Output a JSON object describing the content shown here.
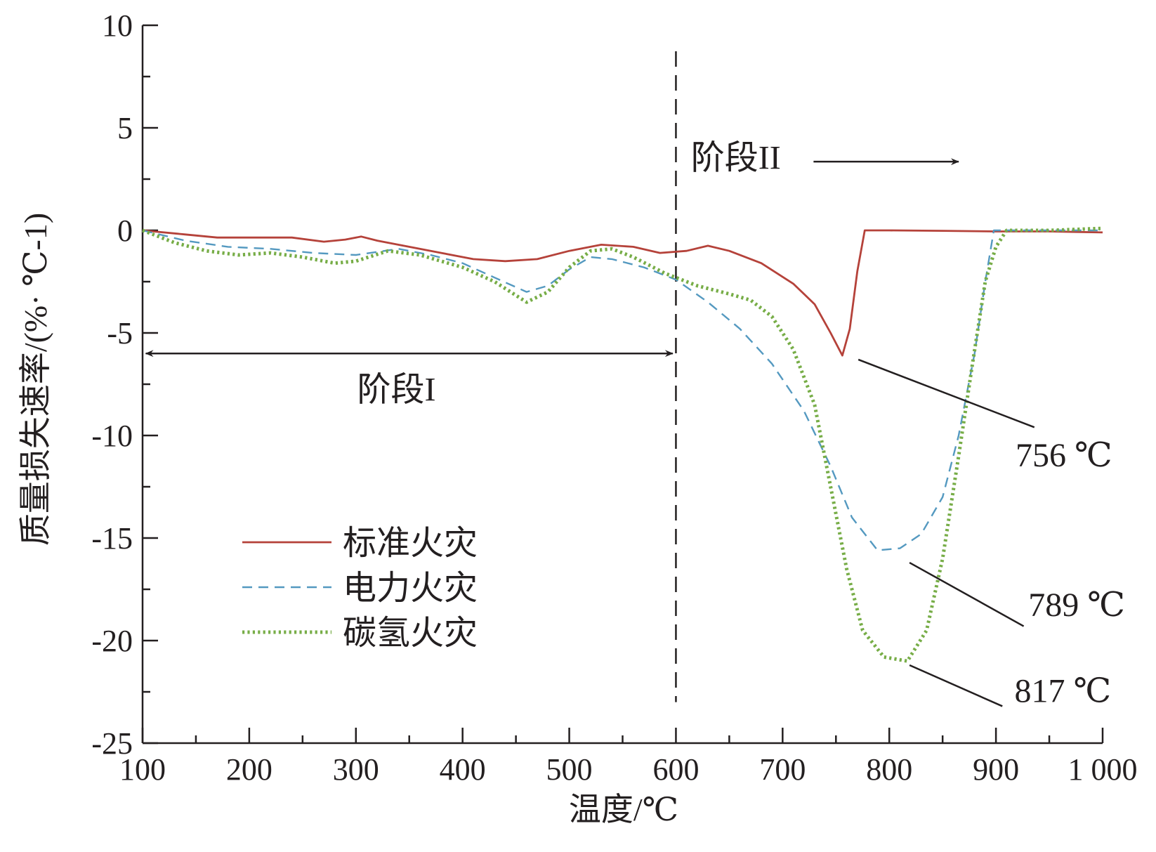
{
  "chart_data": {
    "type": "line",
    "xlabel": "温度/℃",
    "ylabel": "质量损失速率/(%· ℃-1)",
    "xlim": [
      100,
      1000
    ],
    "ylim": [
      -25,
      10
    ],
    "x_ticks": [
      100,
      200,
      300,
      400,
      500,
      600,
      700,
      800,
      900,
      1000
    ],
    "x_tick_labels": [
      "100",
      "200",
      "300",
      "400",
      "500",
      "600",
      "700",
      "800",
      "900",
      "1 000"
    ],
    "y_ticks": [
      10,
      5,
      0,
      -5,
      -10,
      -15,
      -20,
      -25
    ],
    "y_tick_labels": [
      "10",
      "5",
      "0",
      "-5",
      "-10",
      "-15",
      "-20",
      "-25"
    ],
    "grid": false,
    "legend_position": "lower-left",
    "series": [
      {
        "name": "标准火灾",
        "color": "#b5423a",
        "style": "solid",
        "points": [
          [
            100,
            0
          ],
          [
            140,
            -0.2
          ],
          [
            170,
            -0.35
          ],
          [
            200,
            -0.35
          ],
          [
            240,
            -0.35
          ],
          [
            270,
            -0.55
          ],
          [
            290,
            -0.45
          ],
          [
            305,
            -0.3
          ],
          [
            320,
            -0.5
          ],
          [
            350,
            -0.8
          ],
          [
            380,
            -1.1
          ],
          [
            410,
            -1.4
          ],
          [
            440,
            -1.5
          ],
          [
            470,
            -1.4
          ],
          [
            500,
            -1.0
          ],
          [
            530,
            -0.7
          ],
          [
            560,
            -0.8
          ],
          [
            585,
            -1.1
          ],
          [
            610,
            -1.0
          ],
          [
            630,
            -0.75
          ],
          [
            650,
            -1.0
          ],
          [
            680,
            -1.6
          ],
          [
            710,
            -2.6
          ],
          [
            730,
            -3.6
          ],
          [
            745,
            -5.0
          ],
          [
            756,
            -6.1
          ],
          [
            763,
            -4.8
          ],
          [
            770,
            -2.0
          ],
          [
            777,
            0
          ],
          [
            800,
            0
          ],
          [
            850,
            -0.02
          ],
          [
            900,
            -0.05
          ],
          [
            950,
            -0.05
          ],
          [
            1000,
            -0.1
          ]
        ]
      },
      {
        "name": "电力火灾",
        "color": "#5499c0",
        "style": "dashed",
        "points": [
          [
            100,
            0
          ],
          [
            140,
            -0.5
          ],
          [
            180,
            -0.8
          ],
          [
            220,
            -0.9
          ],
          [
            260,
            -1.1
          ],
          [
            300,
            -1.2
          ],
          [
            340,
            -0.9
          ],
          [
            370,
            -1.2
          ],
          [
            400,
            -1.6
          ],
          [
            430,
            -2.3
          ],
          [
            460,
            -3.0
          ],
          [
            480,
            -2.7
          ],
          [
            500,
            -1.9
          ],
          [
            520,
            -1.3
          ],
          [
            540,
            -1.4
          ],
          [
            570,
            -1.8
          ],
          [
            600,
            -2.4
          ],
          [
            630,
            -3.5
          ],
          [
            660,
            -4.8
          ],
          [
            690,
            -6.5
          ],
          [
            720,
            -8.8
          ],
          [
            745,
            -11.5
          ],
          [
            765,
            -14.0
          ],
          [
            789,
            -15.6
          ],
          [
            810,
            -15.5
          ],
          [
            830,
            -14.8
          ],
          [
            850,
            -13.0
          ],
          [
            865,
            -10.0
          ],
          [
            880,
            -6.0
          ],
          [
            890,
            -2.5
          ],
          [
            898,
            0
          ],
          [
            950,
            0
          ],
          [
            1000,
            0
          ]
        ]
      },
      {
        "name": "碳氢火灾",
        "color": "#77ad47",
        "style": "dotted",
        "points": [
          [
            100,
            0
          ],
          [
            130,
            -0.6
          ],
          [
            160,
            -1.0
          ],
          [
            190,
            -1.2
          ],
          [
            220,
            -1.1
          ],
          [
            250,
            -1.3
          ],
          [
            280,
            -1.6
          ],
          [
            300,
            -1.5
          ],
          [
            330,
            -1.0
          ],
          [
            360,
            -1.2
          ],
          [
            400,
            -1.8
          ],
          [
            430,
            -2.5
          ],
          [
            460,
            -3.5
          ],
          [
            480,
            -3.0
          ],
          [
            500,
            -1.8
          ],
          [
            520,
            -1.0
          ],
          [
            540,
            -0.9
          ],
          [
            560,
            -1.3
          ],
          [
            590,
            -2.1
          ],
          [
            620,
            -2.7
          ],
          [
            650,
            -3.1
          ],
          [
            670,
            -3.4
          ],
          [
            690,
            -4.2
          ],
          [
            710,
            -5.8
          ],
          [
            730,
            -8.5
          ],
          [
            745,
            -12.5
          ],
          [
            760,
            -16.5
          ],
          [
            775,
            -19.5
          ],
          [
            795,
            -20.8
          ],
          [
            817,
            -21.0
          ],
          [
            835,
            -19.5
          ],
          [
            850,
            -16.0
          ],
          [
            865,
            -11.0
          ],
          [
            878,
            -6.5
          ],
          [
            890,
            -2.5
          ],
          [
            900,
            -0.8
          ],
          [
            910,
            0
          ],
          [
            950,
            0
          ],
          [
            1000,
            0.1
          ]
        ]
      }
    ],
    "annotations": {
      "stage1_label": "阶段I",
      "stage2_label": "阶段II",
      "peak1_label": "756 ℃",
      "peak2_label": "789 ℃",
      "peak3_label": "817 ℃"
    }
  }
}
